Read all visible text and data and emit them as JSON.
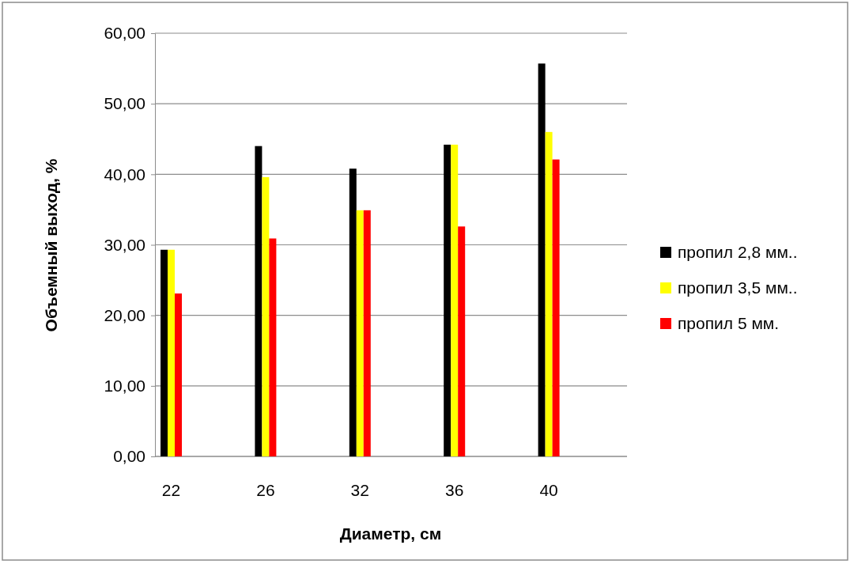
{
  "chart_data": {
    "type": "bar",
    "xlabel": "Диаметр, см",
    "ylabel": "Объемный выход, %",
    "categories": [
      "22",
      "26",
      "32",
      "36",
      "40"
    ],
    "series": [
      {
        "name": "пропил 2,8 мм..",
        "color": "#000000",
        "values": [
          29.3,
          44.0,
          40.8,
          44.2,
          55.7
        ]
      },
      {
        "name": "пропил 3,5 мм..",
        "color": "#ffff00",
        "values": [
          29.3,
          39.6,
          34.9,
          44.2,
          46.0
        ]
      },
      {
        "name": "пропил 5 мм.",
        "color": "#ff0000",
        "values": [
          23.1,
          30.9,
          34.9,
          32.6,
          42.1
        ]
      }
    ],
    "ylim": [
      0,
      60
    ],
    "yticks": [
      {
        "value": 0,
        "label": "0,00"
      },
      {
        "value": 10,
        "label": "10,00"
      },
      {
        "value": 20,
        "label": "20,00"
      },
      {
        "value": 30,
        "label": "30,00"
      },
      {
        "value": 40,
        "label": "40,00"
      },
      {
        "value": 50,
        "label": "50,00"
      },
      {
        "value": 60,
        "label": "60,00"
      }
    ],
    "grid": "y",
    "legend": "right"
  }
}
